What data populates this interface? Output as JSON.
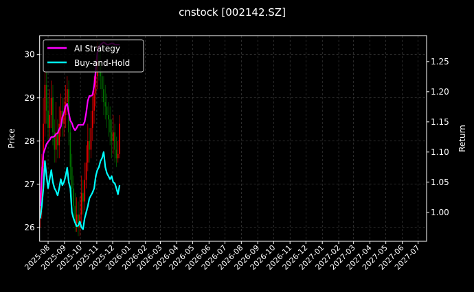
{
  "chart_data": {
    "type": "line",
    "title": "cnstock [002142.SZ]",
    "ylabel_left": "Price",
    "ylabel_right": "Return",
    "xlim": [
      "2025-07-16",
      "2027-07-17"
    ],
    "ylim_left": [
      25.68,
      30.44
    ],
    "ylim_right": [
      0.952,
      1.293
    ],
    "grid": true,
    "legend_position": "top-left",
    "x_tick_labels": [
      "2025-08",
      "2025-09",
      "2025-10",
      "2025-11",
      "2025-12",
      "2026-01",
      "2026-02",
      "2026-03",
      "2026-04",
      "2026-05",
      "2026-06",
      "2026-07",
      "2026-08",
      "2026-09",
      "2026-10",
      "2026-11",
      "2026-12",
      "2027-01",
      "2027-02",
      "2027-03",
      "2027-04",
      "2027-05",
      "2027-06",
      "2027-07"
    ],
    "y_left_ticks": [
      26,
      27,
      28,
      29,
      30
    ],
    "y_right_ticks": [
      "1.00",
      "1.05",
      "1.10",
      "1.15",
      "1.20",
      "1.25"
    ],
    "colors": {
      "background": "#000000",
      "up": "#ff0000",
      "down": "#008000",
      "strategy": "#ff00ff",
      "buy_hold": "#00ffff",
      "grid": "#555555"
    },
    "dates": [
      "2025-07-17",
      "2025-07-20",
      "2025-07-23",
      "2025-07-26",
      "2025-07-29",
      "2025-08-01",
      "2025-08-04",
      "2025-08-07",
      "2025-08-10",
      "2025-08-13",
      "2025-08-16",
      "2025-08-19",
      "2025-08-22",
      "2025-08-25",
      "2025-08-28",
      "2025-08-31",
      "2025-09-03",
      "2025-09-06",
      "2025-09-09",
      "2025-09-12",
      "2025-09-15",
      "2025-09-18",
      "2025-09-21",
      "2025-09-24",
      "2025-09-27",
      "2025-09-30",
      "2025-10-03",
      "2025-10-06",
      "2025-10-09",
      "2025-10-12",
      "2025-10-15",
      "2025-10-18",
      "2025-10-21",
      "2025-10-24",
      "2025-10-27",
      "2025-10-30",
      "2025-11-02",
      "2025-11-05",
      "2025-11-08",
      "2025-11-11",
      "2025-11-14",
      "2025-11-17",
      "2025-11-20",
      "2025-11-23",
      "2025-11-26",
      "2025-11-29",
      "2025-12-02",
      "2025-12-05",
      "2025-12-08",
      "2025-12-11",
      "2025-12-14"
    ],
    "candles": {
      "open": [
        26.3,
        26.5,
        27.4,
        28.4,
        29.3,
        28.7,
        28.3,
        28.6,
        29.0,
        28.2,
        27.8,
        28.2,
        27.9,
        28.4,
        28.7,
        28.4,
        28.6,
        28.9,
        29.2,
        28.2,
        27.4,
        26.9,
        26.5,
        26.1,
        26.3,
        26.0,
        26.3,
        26.8,
        26.6,
        27.1,
        27.5,
        28.0,
        27.8,
        28.3,
        28.7,
        29.1,
        29.5,
        30.0,
        29.8,
        29.5,
        29.2,
        28.9,
        28.8,
        28.6,
        28.5,
        28.2,
        28.0,
        28.2,
        27.8,
        27.6,
        27.7
      ],
      "high": [
        26.8,
        27.7,
        29.0,
        29.7,
        29.6,
        29.0,
        29.2,
        29.4,
        29.3,
        28.5,
        28.9,
        28.5,
        28.8,
        29.1,
        29.0,
        29.0,
        29.3,
        29.5,
        29.4,
        28.5,
        27.7,
        27.2,
        26.8,
        26.7,
        26.6,
        26.7,
        27.2,
        27.1,
        27.5,
        27.9,
        28.4,
        28.3,
        28.7,
        29.1,
        29.5,
        29.9,
        30.3,
        30.3,
        30.1,
        29.8,
        29.5,
        29.3,
        29.1,
        28.9,
        28.8,
        28.5,
        28.6,
        28.4,
        28.1,
        28.0,
        28.6
      ],
      "low": [
        26.0,
        26.2,
        27.1,
        28.1,
        28.4,
        28.0,
        28.0,
        28.3,
        27.9,
        27.5,
        27.5,
        27.6,
        27.6,
        28.1,
        28.1,
        28.1,
        28.3,
        28.6,
        27.9,
        27.1,
        26.6,
        26.2,
        25.9,
        25.9,
        25.8,
        25.8,
        26.1,
        26.3,
        26.4,
        26.9,
        27.3,
        27.5,
        27.6,
        28.0,
        28.4,
        28.8,
        29.2,
        29.4,
        29.2,
        28.9,
        28.6,
        28.5,
        28.3,
        28.1,
        27.9,
        27.6,
        27.7,
        27.5,
        27.4,
        27.5,
        27.6
      ],
      "close": [
        26.5,
        27.4,
        28.4,
        29.3,
        28.7,
        28.3,
        28.6,
        29.0,
        28.2,
        27.8,
        28.2,
        27.9,
        28.4,
        28.7,
        28.4,
        28.6,
        28.9,
        29.2,
        28.2,
        27.4,
        26.9,
        26.5,
        26.1,
        26.3,
        26.0,
        26.3,
        26.8,
        26.6,
        27.1,
        27.5,
        28.0,
        27.8,
        28.3,
        28.7,
        29.1,
        29.5,
        30.0,
        29.8,
        29.5,
        29.2,
        28.9,
        28.8,
        28.6,
        28.5,
        28.2,
        28.0,
        28.2,
        27.8,
        27.6,
        27.7,
        28.4
      ]
    },
    "series": [
      {
        "name": "AI Strategy",
        "axis": "right",
        "values": [
          1.01,
          1.06,
          1.097,
          1.105,
          1.113,
          1.117,
          1.12,
          1.125,
          1.125,
          1.126,
          1.13,
          1.131,
          1.138,
          1.142,
          1.158,
          1.165,
          1.176,
          1.18,
          1.165,
          1.152,
          1.148,
          1.14,
          1.136,
          1.14,
          1.145,
          1.145,
          1.145,
          1.145,
          1.15,
          1.165,
          1.185,
          1.193,
          1.193,
          1.195,
          1.21,
          1.235,
          1.265,
          1.275,
          1.278,
          1.28,
          1.282,
          1.28,
          1.278,
          1.278,
          1.279,
          1.28,
          1.28,
          1.278,
          1.278,
          1.278,
          1.278
        ]
      },
      {
        "name": "Buy-and-Hold",
        "axis": "right",
        "values": [
          0.99,
          1.01,
          1.04,
          1.085,
          1.06,
          1.04,
          1.055,
          1.07,
          1.05,
          1.04,
          1.035,
          1.028,
          1.04,
          1.055,
          1.045,
          1.05,
          1.06,
          1.074,
          1.05,
          1.04,
          1.0,
          0.99,
          0.983,
          0.977,
          0.978,
          0.985,
          0.975,
          0.972,
          0.99,
          1.0,
          1.01,
          1.023,
          1.028,
          1.033,
          1.04,
          1.06,
          1.07,
          1.075,
          1.085,
          1.09,
          1.1,
          1.075,
          1.065,
          1.06,
          1.055,
          1.06,
          1.05,
          1.048,
          1.04,
          1.03,
          1.045
        ]
      }
    ]
  }
}
